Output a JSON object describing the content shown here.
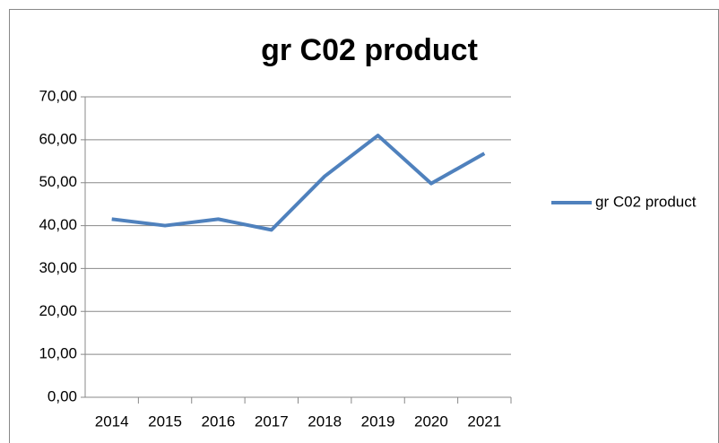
{
  "chart_data": {
    "type": "line",
    "title": "gr C02 product",
    "categories": [
      "2014",
      "2015",
      "2016",
      "2017",
      "2018",
      "2019",
      "2020",
      "2021"
    ],
    "series": [
      {
        "name": "gr C02 product",
        "color": "#4f81bd",
        "values": [
          41.5,
          40,
          41.5,
          39,
          51.5,
          61,
          49.8,
          56.8
        ]
      }
    ],
    "ylim": [
      0,
      70
    ],
    "yticks": [
      {
        "value": 0,
        "label": "0,00"
      },
      {
        "value": 10,
        "label": "10,00"
      },
      {
        "value": 20,
        "label": "20,00"
      },
      {
        "value": 30,
        "label": "30,00"
      },
      {
        "value": 40,
        "label": "40,00"
      },
      {
        "value": 50,
        "label": "50,00"
      },
      {
        "value": 60,
        "label": "60,00"
      },
      {
        "value": 70,
        "label": "70,00"
      }
    ],
    "grid": true,
    "legend": "right"
  }
}
